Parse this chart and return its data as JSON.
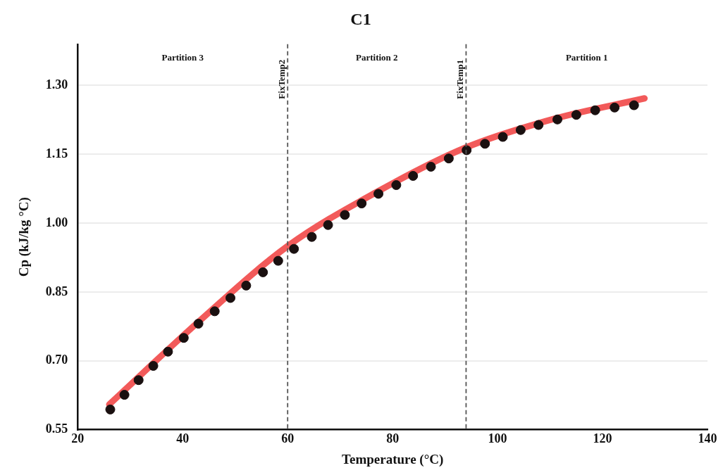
{
  "chart_data": {
    "type": "scatter",
    "title": "C1",
    "xlabel": "Temperature (°C)",
    "ylabel": "Cp (kJ/kg °C)",
    "xlim": [
      20,
      140
    ],
    "xticks": [
      20,
      40,
      60,
      80,
      100,
      120,
      140
    ],
    "ylim": [
      0.55,
      1.39
    ],
    "yticks": [
      {
        "value": 0.55,
        "label": "0.55"
      },
      {
        "value": 0.7,
        "label": "0.70"
      },
      {
        "value": 0.85,
        "label": "0.85"
      },
      {
        "value": 1.0,
        "label": "1.00"
      },
      {
        "value": 1.15,
        "label": "1.15"
      },
      {
        "value": 1.3,
        "label": "1.30"
      }
    ],
    "grid": "y",
    "legend": false,
    "series": [
      {
        "type": "line",
        "color": "#f25a5a",
        "line_style": "solid",
        "marker": "none",
        "x": [
          26,
          43,
          60,
          77,
          94,
          111,
          128
        ],
        "values": [
          0.605,
          0.785,
          0.95,
          1.068,
          1.165,
          1.228,
          1.272
        ]
      },
      {
        "color": "#1a1010",
        "marker": "circle",
        "x": [
          26.2,
          28.9,
          31.6,
          34.4,
          37.2,
          40.2,
          43.0,
          46.1,
          49.1,
          52.1,
          55.3,
          58.2,
          61.2,
          64.6,
          67.7,
          70.9,
          74.1,
          77.3,
          80.7,
          83.9,
          87.3,
          90.7,
          94.1,
          97.6,
          101.0,
          104.4,
          107.8,
          111.4,
          115.0,
          118.6,
          122.3,
          126.0
        ],
        "values": [
          0.594,
          0.626,
          0.658,
          0.689,
          0.72,
          0.75,
          0.781,
          0.808,
          0.837,
          0.864,
          0.893,
          0.918,
          0.944,
          0.97,
          0.996,
          1.018,
          1.043,
          1.064,
          1.083,
          1.103,
          1.123,
          1.141,
          1.159,
          1.173,
          1.188,
          1.203,
          1.214,
          1.226,
          1.236,
          1.246,
          1.252,
          1.257
        ]
      }
    ],
    "ref_lines": [
      {
        "axis": "x",
        "value": 60,
        "label": "FixTemp2",
        "color": "#555555",
        "line_style": "dashed"
      },
      {
        "axis": "x",
        "value": 94,
        "label": "FixTemp1",
        "color": "#555555",
        "line_style": "dashed"
      }
    ],
    "annotations": [
      "Partition 3",
      "Partition 2",
      "Partition 1"
    ]
  }
}
